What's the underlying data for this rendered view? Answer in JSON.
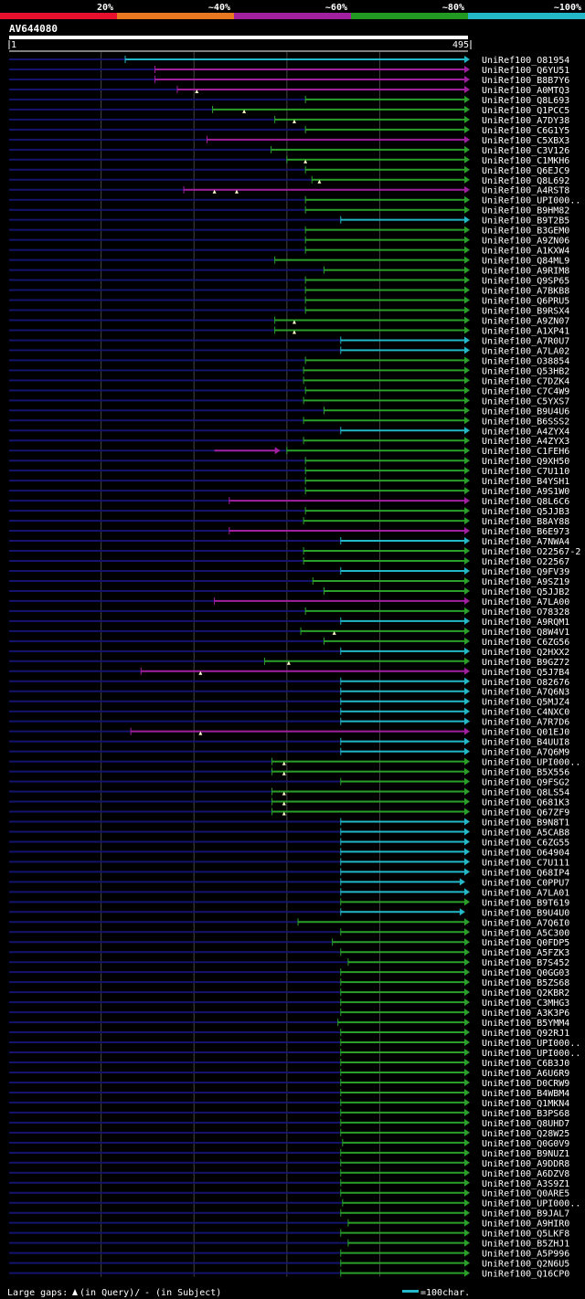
{
  "chart_data": {
    "type": "alignment",
    "title": "AV644080",
    "query_length": 495,
    "axis": {
      "start_label": "1",
      "end_label": "495",
      "min": 1,
      "max": 495
    },
    "identity_scale": [
      {
        "label": "",
        "color": "#e8112d"
      },
      {
        "label": "20%",
        "color": "#e8112d"
      },
      {
        "label": "~40%",
        "color": "#e87722"
      },
      {
        "label": "~60%",
        "color": "#a020a0"
      },
      {
        "label": "~80%",
        "color": "#229922"
      },
      {
        "label": "~100%",
        "color": "#22b8c8"
      }
    ],
    "colors": {
      "purple": "#a020a0",
      "green": "#2aa02a",
      "cyan": "#22b8c8",
      "unaligned": "#14146e"
    },
    "footer": {
      "gaps_prefix": "Large gaps:",
      "gaps_query": "(in Query)/",
      "gaps_subject": "- (in Subject)",
      "scale_label": "=100char."
    },
    "hits": [
      {
        "name": "UniRef100_O81954",
        "start": 126,
        "end": 495,
        "color": "cyan",
        "marks": []
      },
      {
        "name": "UniRef100_Q6YU51",
        "start": 158,
        "end": 495,
        "color": "purple",
        "marks": []
      },
      {
        "name": "UniRef100_B8B7Y6",
        "start": 158,
        "end": 495,
        "color": "purple",
        "marks": []
      },
      {
        "name": "UniRef100_A0MTQ3",
        "start": 182,
        "end": 495,
        "color": "purple",
        "marks": [
          203
        ]
      },
      {
        "name": "UniRef100_Q8L693",
        "start": 320,
        "end": 495,
        "color": "green",
        "marks": []
      },
      {
        "name": "UniRef100_Q1PCC5",
        "start": 220,
        "end": 495,
        "color": "green",
        "marks": [
          254
        ]
      },
      {
        "name": "UniRef100_A7DY38",
        "start": 287,
        "end": 495,
        "color": "green",
        "marks": [
          308
        ]
      },
      {
        "name": "UniRef100_C6G1Y5",
        "start": 320,
        "end": 495,
        "color": "green",
        "marks": []
      },
      {
        "name": "UniRef100_C5XBX3",
        "start": 214,
        "end": 495,
        "color": "purple",
        "marks": []
      },
      {
        "name": "UniRef100_C3V126",
        "start": 283,
        "end": 495,
        "color": "green",
        "marks": []
      },
      {
        "name": "UniRef100_C1MKH6",
        "start": 300,
        "end": 495,
        "color": "green",
        "marks": [
          320
        ]
      },
      {
        "name": "UniRef100_Q6EJC9",
        "start": 320,
        "end": 495,
        "color": "green",
        "marks": []
      },
      {
        "name": "UniRef100_Q8L692",
        "start": 327,
        "end": 495,
        "color": "green",
        "marks": [
          335
        ]
      },
      {
        "name": "UniRef100_A4RST8",
        "start": 189,
        "end": 495,
        "color": "purple",
        "marks": [
          222,
          246
        ]
      },
      {
        "name": "UniRef100_UPI000..",
        "start": 320,
        "end": 495,
        "color": "green",
        "marks": []
      },
      {
        "name": "UniRef100_B9HM82",
        "start": 320,
        "end": 495,
        "color": "green",
        "marks": []
      },
      {
        "name": "UniRef100_B9T2B5",
        "start": 358,
        "end": 495,
        "color": "cyan",
        "marks": []
      },
      {
        "name": "UniRef100_B3GEM0",
        "start": 320,
        "end": 495,
        "color": "green",
        "marks": []
      },
      {
        "name": "UniRef100_A9ZN06",
        "start": 320,
        "end": 495,
        "color": "green",
        "marks": []
      },
      {
        "name": "UniRef100_A1KXW4",
        "start": 320,
        "end": 495,
        "color": "green",
        "marks": []
      },
      {
        "name": "UniRef100_Q84ML9",
        "start": 287,
        "end": 495,
        "color": "green",
        "marks": []
      },
      {
        "name": "UniRef100_A9RIM8",
        "start": 340,
        "end": 495,
        "color": "green",
        "marks": []
      },
      {
        "name": "UniRef100_Q9SP65",
        "start": 320,
        "end": 495,
        "color": "green",
        "marks": []
      },
      {
        "name": "UniRef100_A7BKB8",
        "start": 320,
        "end": 495,
        "color": "green",
        "marks": []
      },
      {
        "name": "UniRef100_Q6PRU5",
        "start": 320,
        "end": 495,
        "color": "green",
        "marks": []
      },
      {
        "name": "UniRef100_B9RSX4",
        "start": 320,
        "end": 495,
        "color": "green",
        "marks": []
      },
      {
        "name": "UniRef100_A9ZN07",
        "start": 287,
        "end": 495,
        "color": "green",
        "marks": [
          308
        ]
      },
      {
        "name": "UniRef100_A1XP41",
        "start": 287,
        "end": 495,
        "color": "green",
        "marks": [
          308
        ]
      },
      {
        "name": "UniRef100_A7R0U7",
        "start": 358,
        "end": 495,
        "color": "cyan",
        "marks": []
      },
      {
        "name": "UniRef100_A7LA02",
        "start": 358,
        "end": 495,
        "color": "cyan",
        "marks": []
      },
      {
        "name": "UniRef100_O38854",
        "start": 320,
        "end": 495,
        "color": "green",
        "marks": []
      },
      {
        "name": "UniRef100_Q53HB2",
        "start": 318,
        "end": 495,
        "color": "green",
        "marks": []
      },
      {
        "name": "UniRef100_C7DZK4",
        "start": 318,
        "end": 495,
        "color": "green",
        "marks": []
      },
      {
        "name": "UniRef100_C7C4W9",
        "start": 320,
        "end": 495,
        "color": "green",
        "marks": []
      },
      {
        "name": "UniRef100_C5YXS7",
        "start": 318,
        "end": 495,
        "color": "green",
        "marks": []
      },
      {
        "name": "UniRef100_B9U4U6",
        "start": 340,
        "end": 495,
        "color": "green",
        "marks": []
      },
      {
        "name": "UniRef100_B6SSS2",
        "start": 318,
        "end": 495,
        "color": "green",
        "marks": []
      },
      {
        "name": "UniRef100_A4ZYX4",
        "start": 358,
        "end": 495,
        "color": "cyan",
        "marks": []
      },
      {
        "name": "UniRef100_A4ZYX3",
        "start": 318,
        "end": 495,
        "color": "green",
        "marks": []
      },
      {
        "name": "UniRef100_C1FEH6",
        "start": 300,
        "end": 495,
        "color": "green",
        "marks": [],
        "pre": {
          "start": 222,
          "end": 290,
          "color": "purple"
        }
      },
      {
        "name": "UniRef100_Q9XH50",
        "start": 320,
        "end": 495,
        "color": "green",
        "marks": []
      },
      {
        "name": "UniRef100_C7U110",
        "start": 320,
        "end": 495,
        "color": "green",
        "marks": []
      },
      {
        "name": "UniRef100_B4YSH1",
        "start": 320,
        "end": 495,
        "color": "green",
        "marks": []
      },
      {
        "name": "UniRef100_A9S1W0",
        "start": 320,
        "end": 495,
        "color": "green",
        "marks": []
      },
      {
        "name": "UniRef100_Q8L6C6",
        "start": 238,
        "end": 495,
        "color": "purple",
        "marks": []
      },
      {
        "name": "UniRef100_Q5JJB3",
        "start": 320,
        "end": 495,
        "color": "green",
        "marks": []
      },
      {
        "name": "UniRef100_B8AY88",
        "start": 318,
        "end": 495,
        "color": "green",
        "marks": []
      },
      {
        "name": "UniRef100_B6E973",
        "start": 238,
        "end": 495,
        "color": "purple",
        "marks": []
      },
      {
        "name": "UniRef100_A7NWA4",
        "start": 358,
        "end": 495,
        "color": "cyan",
        "marks": []
      },
      {
        "name": "UniRef100_O22567-2",
        "start": 318,
        "end": 495,
        "color": "green",
        "marks": []
      },
      {
        "name": "UniRef100_O22567",
        "start": 318,
        "end": 495,
        "color": "green",
        "marks": []
      },
      {
        "name": "UniRef100_Q9FV39",
        "start": 358,
        "end": 495,
        "color": "cyan",
        "marks": []
      },
      {
        "name": "UniRef100_A9SZ19",
        "start": 328,
        "end": 495,
        "color": "green",
        "marks": []
      },
      {
        "name": "UniRef100_Q5JJB2",
        "start": 340,
        "end": 495,
        "color": "green",
        "marks": []
      },
      {
        "name": "UniRef100_A7LA00",
        "start": 222,
        "end": 495,
        "color": "purple",
        "marks": []
      },
      {
        "name": "UniRef100_O78328",
        "start": 320,
        "end": 495,
        "color": "green",
        "marks": []
      },
      {
        "name": "UniRef100_A9RQM1",
        "start": 358,
        "end": 495,
        "color": "cyan",
        "marks": []
      },
      {
        "name": "UniRef100_Q8W4V1",
        "start": 315,
        "end": 495,
        "color": "green",
        "marks": [
          351
        ]
      },
      {
        "name": "UniRef100_C6ZG56",
        "start": 340,
        "end": 495,
        "color": "green",
        "marks": []
      },
      {
        "name": "UniRef100_Q2HXX2",
        "start": 358,
        "end": 495,
        "color": "cyan",
        "marks": []
      },
      {
        "name": "UniRef100_B9GZ72",
        "start": 276,
        "end": 495,
        "color": "green",
        "marks": [
          302
        ]
      },
      {
        "name": "UniRef100_Q5J7B4",
        "start": 143,
        "end": 495,
        "color": "purple",
        "marks": [
          207
        ]
      },
      {
        "name": "UniRef100_O82676",
        "start": 358,
        "end": 495,
        "color": "cyan",
        "marks": []
      },
      {
        "name": "UniRef100_A7Q6N3",
        "start": 358,
        "end": 495,
        "color": "cyan",
        "marks": []
      },
      {
        "name": "UniRef100_Q5MJZ4",
        "start": 358,
        "end": 495,
        "color": "cyan",
        "marks": []
      },
      {
        "name": "UniRef100_C4NXC0",
        "start": 358,
        "end": 495,
        "color": "cyan",
        "marks": []
      },
      {
        "name": "UniRef100_A7R7D6",
        "start": 358,
        "end": 495,
        "color": "cyan",
        "marks": []
      },
      {
        "name": "UniRef100_Q01EJ0",
        "start": 132,
        "end": 495,
        "color": "purple",
        "marks": [
          207
        ]
      },
      {
        "name": "UniRef100_B4UUI8",
        "start": 358,
        "end": 495,
        "color": "cyan",
        "marks": []
      },
      {
        "name": "UniRef100_A7Q6M9",
        "start": 358,
        "end": 495,
        "color": "cyan",
        "marks": []
      },
      {
        "name": "UniRef100_UPI000..",
        "start": 284,
        "end": 495,
        "color": "green",
        "marks": [
          297
        ]
      },
      {
        "name": "UniRef100_B5X556",
        "start": 284,
        "end": 495,
        "color": "green",
        "marks": [
          297
        ]
      },
      {
        "name": "UniRef100_Q9FSG2",
        "start": 358,
        "end": 495,
        "color": "green",
        "marks": []
      },
      {
        "name": "UniRef100_Q8LS54",
        "start": 284,
        "end": 495,
        "color": "green",
        "marks": [
          297
        ]
      },
      {
        "name": "UniRef100_Q681K3",
        "start": 284,
        "end": 495,
        "color": "green",
        "marks": [
          297
        ]
      },
      {
        "name": "UniRef100_Q67ZF9",
        "start": 284,
        "end": 495,
        "color": "green",
        "marks": [
          297
        ]
      },
      {
        "name": "UniRef100_B9N8T1",
        "start": 358,
        "end": 495,
        "color": "cyan",
        "marks": []
      },
      {
        "name": "UniRef100_A5CAB8",
        "start": 358,
        "end": 495,
        "color": "cyan",
        "marks": []
      },
      {
        "name": "UniRef100_C6ZG55",
        "start": 358,
        "end": 495,
        "color": "cyan",
        "marks": []
      },
      {
        "name": "UniRef100_O64904",
        "start": 358,
        "end": 495,
        "color": "cyan",
        "marks": []
      },
      {
        "name": "UniRef100_C7U111",
        "start": 358,
        "end": 495,
        "color": "cyan",
        "marks": []
      },
      {
        "name": "UniRef100_Q68IP4",
        "start": 358,
        "end": 495,
        "color": "cyan",
        "marks": []
      },
      {
        "name": "UniRef100_C0PPU7",
        "start": 358,
        "end": 490,
        "color": "cyan",
        "marks": []
      },
      {
        "name": "UniRef100_A7LA01",
        "start": 358,
        "end": 495,
        "color": "cyan",
        "marks": []
      },
      {
        "name": "UniRef100_B9T619",
        "start": 358,
        "end": 495,
        "color": "green",
        "marks": []
      },
      {
        "name": "UniRef100_B9U4U0",
        "start": 358,
        "end": 490,
        "color": "cyan",
        "marks": []
      },
      {
        "name": "UniRef100_A7Q6I0",
        "start": 312,
        "end": 495,
        "color": "green",
        "marks": []
      },
      {
        "name": "UniRef100_A5C300",
        "start": 358,
        "end": 495,
        "color": "green",
        "marks": []
      },
      {
        "name": "UniRef100_Q0FDP5",
        "start": 349,
        "end": 495,
        "color": "green",
        "marks": []
      },
      {
        "name": "UniRef100_A5FZK3",
        "start": 358,
        "end": 495,
        "color": "green",
        "marks": []
      },
      {
        "name": "UniRef100_B7S452",
        "start": 366,
        "end": 495,
        "color": "green",
        "marks": []
      },
      {
        "name": "UniRef100_Q0GG03",
        "start": 358,
        "end": 495,
        "color": "green",
        "marks": []
      },
      {
        "name": "UniRef100_B5ZS68",
        "start": 358,
        "end": 495,
        "color": "green",
        "marks": []
      },
      {
        "name": "UniRef100_Q2KBR2",
        "start": 358,
        "end": 495,
        "color": "green",
        "marks": []
      },
      {
        "name": "UniRef100_C3MHG3",
        "start": 358,
        "end": 495,
        "color": "green",
        "marks": []
      },
      {
        "name": "UniRef100_A3K3P6",
        "start": 358,
        "end": 495,
        "color": "green",
        "marks": []
      },
      {
        "name": "UniRef100_B5YMM4",
        "start": 355,
        "end": 495,
        "color": "green",
        "marks": []
      },
      {
        "name": "UniRef100_Q92RJ1",
        "start": 358,
        "end": 495,
        "color": "green",
        "marks": []
      },
      {
        "name": "UniRef100_UPI000..",
        "start": 358,
        "end": 495,
        "color": "green",
        "marks": []
      },
      {
        "name": "UniRef100_UPI000..",
        "start": 358,
        "end": 495,
        "color": "green",
        "marks": []
      },
      {
        "name": "UniRef100_C6B3J0",
        "start": 358,
        "end": 495,
        "color": "green",
        "marks": []
      },
      {
        "name": "UniRef100_A6U6R9",
        "start": 358,
        "end": 495,
        "color": "green",
        "marks": []
      },
      {
        "name": "UniRef100_D0CRW9",
        "start": 358,
        "end": 495,
        "color": "green",
        "marks": []
      },
      {
        "name": "UniRef100_B4WBM4",
        "start": 358,
        "end": 495,
        "color": "green",
        "marks": []
      },
      {
        "name": "UniRef100_Q1MKN4",
        "start": 358,
        "end": 495,
        "color": "green",
        "marks": []
      },
      {
        "name": "UniRef100_B3PS68",
        "start": 358,
        "end": 495,
        "color": "green",
        "marks": []
      },
      {
        "name": "UniRef100_Q8UHD7",
        "start": 358,
        "end": 495,
        "color": "green",
        "marks": []
      },
      {
        "name": "UniRef100_Q28W25",
        "start": 358,
        "end": 495,
        "color": "green",
        "marks": []
      },
      {
        "name": "UniRef100_Q0G0V9",
        "start": 360,
        "end": 495,
        "color": "green",
        "marks": []
      },
      {
        "name": "UniRef100_B9NUZ1",
        "start": 358,
        "end": 495,
        "color": "green",
        "marks": []
      },
      {
        "name": "UniRef100_A9DDR8",
        "start": 358,
        "end": 495,
        "color": "green",
        "marks": []
      },
      {
        "name": "UniRef100_A6DZV8",
        "start": 358,
        "end": 495,
        "color": "green",
        "marks": []
      },
      {
        "name": "UniRef100_A3S9Z1",
        "start": 358,
        "end": 495,
        "color": "green",
        "marks": []
      },
      {
        "name": "UniRef100_Q0ARE5",
        "start": 358,
        "end": 495,
        "color": "green",
        "marks": []
      },
      {
        "name": "UniRef100_UPI000..",
        "start": 360,
        "end": 495,
        "color": "green",
        "marks": []
      },
      {
        "name": "UniRef100_B9JAL7",
        "start": 358,
        "end": 495,
        "color": "green",
        "marks": []
      },
      {
        "name": "UniRef100_A9HIR0",
        "start": 366,
        "end": 495,
        "color": "green",
        "marks": []
      },
      {
        "name": "UniRef100_Q5LKF8",
        "start": 358,
        "end": 495,
        "color": "green",
        "marks": []
      },
      {
        "name": "UniRef100_B5ZHJ1",
        "start": 366,
        "end": 495,
        "color": "green",
        "marks": []
      },
      {
        "name": "UniRef100_A5P996",
        "start": 358,
        "end": 495,
        "color": "green",
        "marks": []
      },
      {
        "name": "UniRef100_Q2N6U5",
        "start": 358,
        "end": 495,
        "color": "green",
        "marks": []
      },
      {
        "name": "UniRef100_Q16CP0",
        "start": 358,
        "end": 495,
        "color": "green",
        "marks": []
      }
    ]
  }
}
